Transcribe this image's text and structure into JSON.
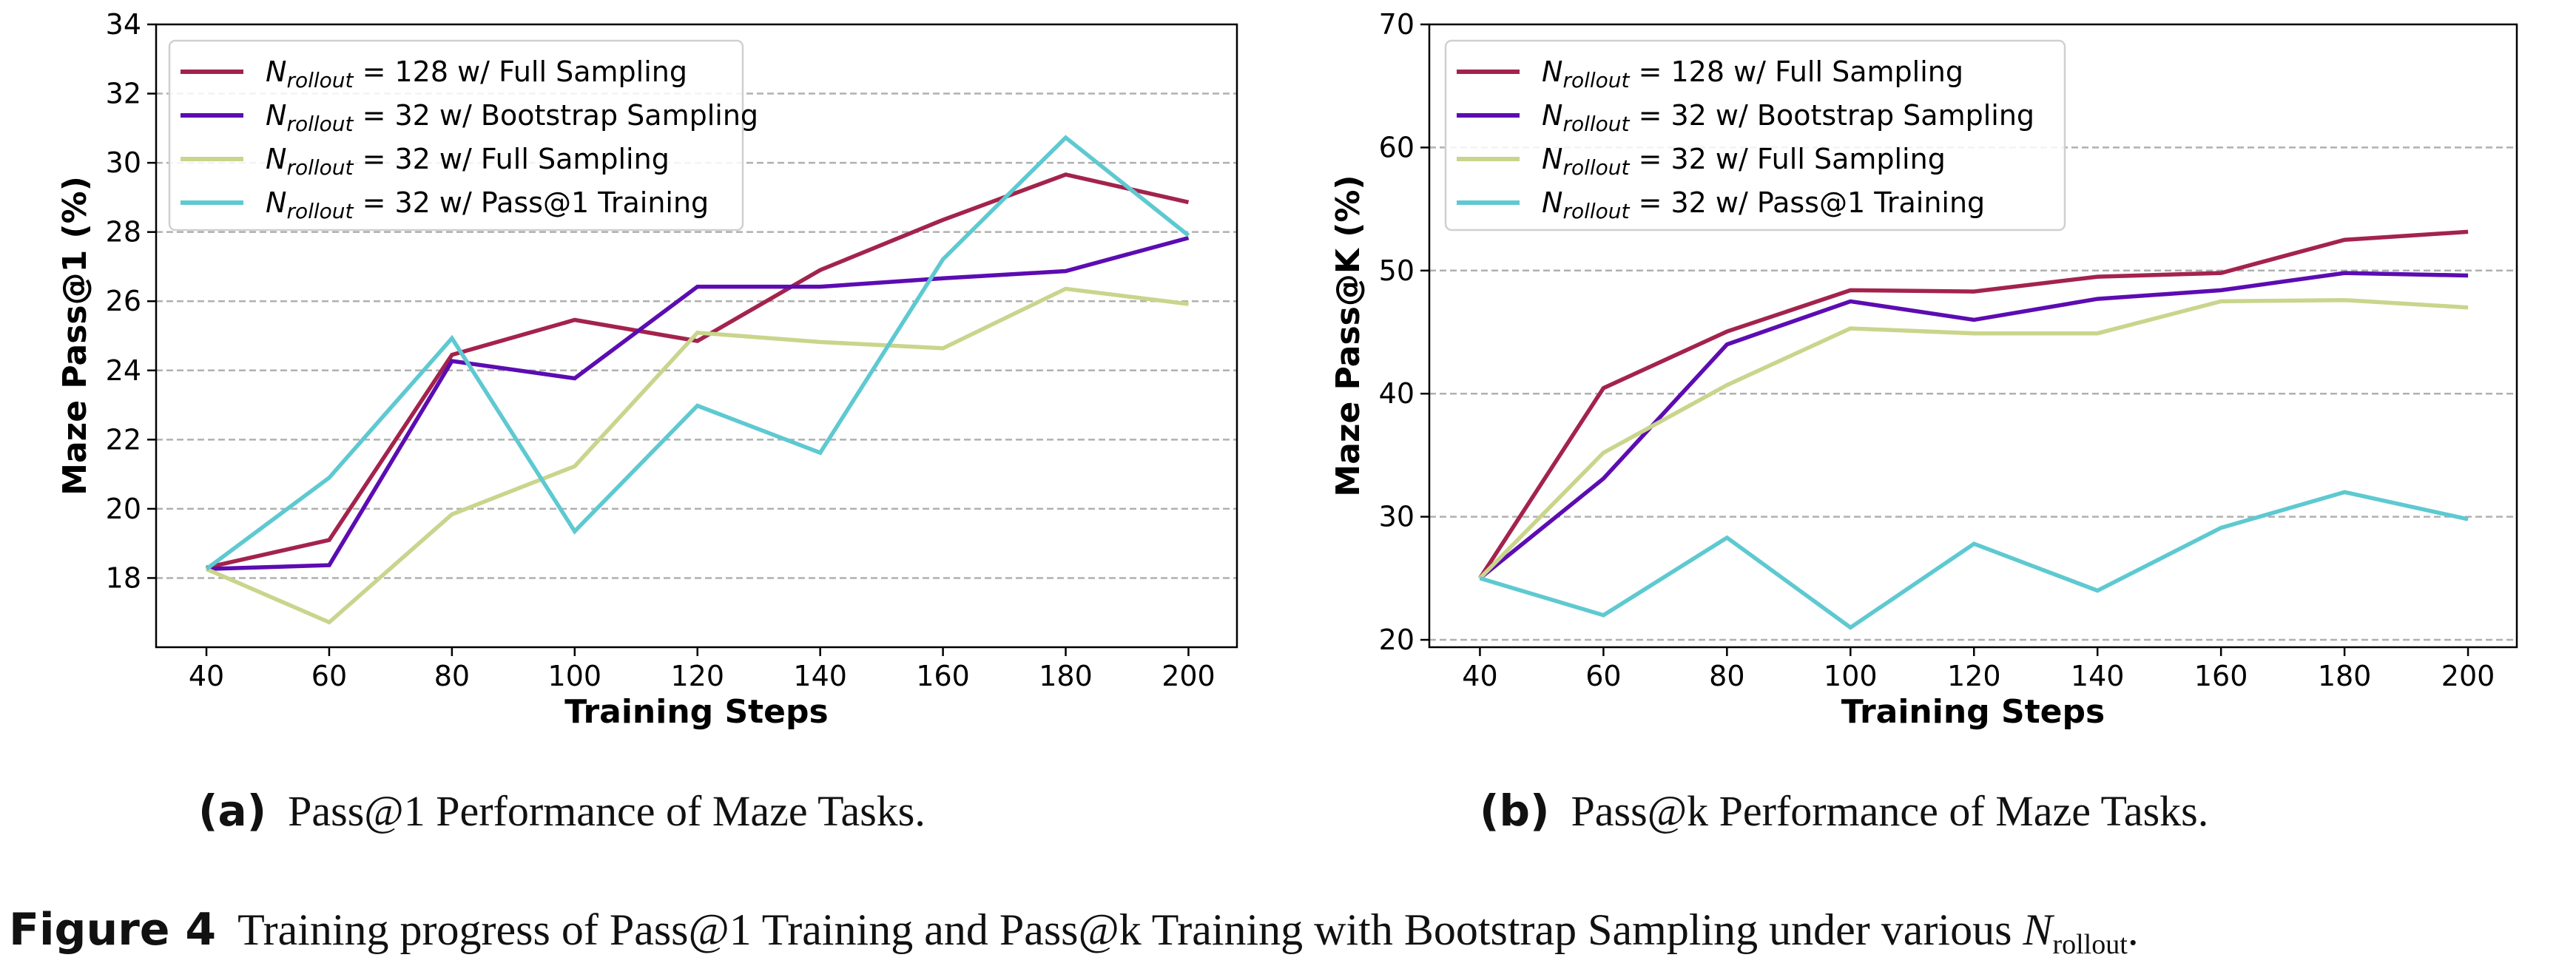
{
  "chart_data": [
    {
      "type": "line",
      "xlabel": "Training Steps",
      "ylabel": "Maze Pass@1 (%)",
      "x": [
        40,
        60,
        80,
        100,
        120,
        140,
        160,
        180,
        200
      ],
      "xticks": [
        40,
        60,
        80,
        100,
        120,
        140,
        160,
        180,
        200
      ],
      "yticks": [
        18,
        20,
        22,
        24,
        26,
        28,
        30,
        32,
        34
      ],
      "xlim": [
        31.8,
        207.9
      ],
      "ylim": [
        16.0,
        34
      ],
      "grid": "horizontal dashed",
      "legend": "top-left",
      "series": [
        {
          "name": "= 128 w/ Full Sampling",
          "color": "#a3234c",
          "values": [
            18.3,
            19.1,
            24.45,
            25.46,
            24.85,
            26.9,
            28.35,
            29.66,
            28.86
          ]
        },
        {
          "name": "= 32 w/ Bootstrap Sampling",
          "color": "#5c0cb2",
          "values": [
            18.26,
            18.37,
            24.27,
            23.77,
            26.42,
            26.42,
            26.66,
            26.87,
            27.83
          ]
        },
        {
          "name": "= 32 w/ Full Sampling",
          "color": "#c9d58c",
          "values": [
            18.26,
            16.72,
            19.84,
            21.23,
            25.09,
            24.82,
            24.64,
            26.36,
            25.92
          ]
        },
        {
          "name": "= 32 w/ Pass@1 Training",
          "color": "#5ec9d1",
          "values": [
            18.26,
            20.9,
            24.93,
            19.35,
            22.98,
            21.62,
            27.21,
            30.73,
            27.9
          ]
        }
      ]
    },
    {
      "type": "line",
      "xlabel": "Training Steps",
      "ylabel": "Maze Pass@K (%)",
      "x": [
        40,
        60,
        80,
        100,
        120,
        140,
        160,
        180,
        200
      ],
      "xticks": [
        40,
        60,
        80,
        100,
        120,
        140,
        160,
        180,
        200
      ],
      "yticks": [
        20,
        30,
        40,
        50,
        60,
        70
      ],
      "xlim": [
        31.8,
        207.9
      ],
      "ylim": [
        19.4,
        70
      ],
      "grid": "horizontal dashed",
      "legend": "top-left",
      "series": [
        {
          "name": "= 128 w/ Full Sampling",
          "color": "#a3234c",
          "values": [
            25.0,
            40.45,
            45.05,
            48.4,
            48.3,
            49.5,
            49.8,
            52.5,
            53.15
          ]
        },
        {
          "name": "= 32 w/ Bootstrap Sampling",
          "color": "#5c0cb2",
          "values": [
            25.0,
            33.1,
            44.0,
            47.5,
            46.0,
            47.7,
            48.4,
            49.8,
            49.6
          ]
        },
        {
          "name": "= 32 w/ Full Sampling",
          "color": "#c9d58c",
          "values": [
            25.0,
            35.2,
            40.7,
            45.3,
            44.9,
            44.9,
            47.5,
            47.6,
            47.0
          ]
        },
        {
          "name": "= 32 w/ Pass@1 Training",
          "color": "#5ec9d1",
          "values": [
            25.0,
            22.0,
            28.3,
            21.0,
            27.8,
            24.0,
            29.1,
            32.0,
            29.8
          ]
        }
      ]
    }
  ],
  "legend_symbol": {
    "base": "N",
    "subscript": "rollout"
  },
  "captions": {
    "a_label": "(a)",
    "a_text": "Pass@1 Performance of Maze Tasks.",
    "b_label": "(b)",
    "b_text": "Pass@k Performance of Maze Tasks.",
    "figure_label": "Figure 4",
    "figure_text": "Training progress of Pass@1 Training and Pass@k Training with Bootstrap Sampling under various",
    "figure_symbol": "N",
    "figure_symbol_sub": "rollout",
    "figure_end": "."
  }
}
